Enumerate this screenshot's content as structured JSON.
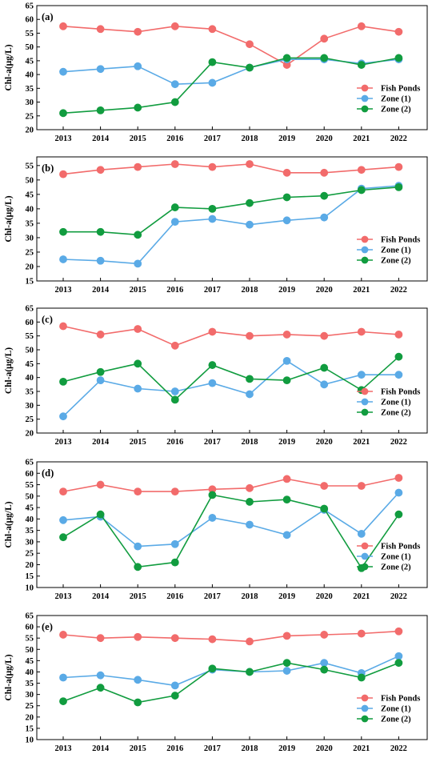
{
  "figure": {
    "x_categories": [
      "2013",
      "2014",
      "2015",
      "2016",
      "2017",
      "2018",
      "2019",
      "2020",
      "2021",
      "2022"
    ],
    "ylabel": "Chl-a(μg/L)",
    "legend": {
      "position": "bottom-right",
      "items": [
        {
          "label": "Fish Ponds",
          "color": "#f26b6b"
        },
        {
          "label": "Zone (1)",
          "color": "#5aaae6"
        },
        {
          "label": "Zone (2)",
          "color": "#119c3f"
        }
      ]
    }
  },
  "chart_data": [
    {
      "panel": "(a)",
      "type": "line",
      "categories": [
        "2013",
        "2014",
        "2015",
        "2016",
        "2017",
        "2018",
        "2019",
        "2020",
        "2021",
        "2022"
      ],
      "ylim": [
        20,
        65
      ],
      "yticks": [
        20,
        25,
        30,
        35,
        40,
        45,
        50,
        55,
        60,
        65
      ],
      "series": [
        {
          "name": "Fish Ponds",
          "values": [
            57.5,
            56.5,
            55.5,
            57.5,
            56.5,
            51,
            43.5,
            53,
            57.5,
            55.5
          ]
        },
        {
          "name": "Zone (1)",
          "values": [
            41,
            42,
            43,
            36.5,
            37,
            42.5,
            45.5,
            45.5,
            44,
            45.5
          ]
        },
        {
          "name": "Zone (2)",
          "values": [
            26,
            27,
            28,
            30,
            44.5,
            42.5,
            46,
            46,
            43.5,
            46
          ]
        }
      ]
    },
    {
      "panel": "(b)",
      "type": "line",
      "categories": [
        "2013",
        "2014",
        "2015",
        "2016",
        "2017",
        "2018",
        "2019",
        "2020",
        "2021",
        "2022"
      ],
      "ylim": [
        15,
        58
      ],
      "yticks": [
        15,
        20,
        25,
        30,
        35,
        40,
        45,
        50,
        55
      ],
      "series": [
        {
          "name": "Fish Ponds",
          "values": [
            52,
            53.5,
            54.5,
            55.5,
            54.5,
            55.5,
            52.5,
            52.5,
            53.5,
            54.5
          ]
        },
        {
          "name": "Zone (1)",
          "values": [
            22.5,
            22,
            21,
            35.5,
            36.5,
            34.5,
            36,
            37,
            47,
            48
          ]
        },
        {
          "name": "Zone (2)",
          "values": [
            32,
            32,
            31,
            40.5,
            40,
            42,
            44,
            44.5,
            46.5,
            47.5
          ]
        }
      ]
    },
    {
      "panel": "(c)",
      "type": "line",
      "categories": [
        "2013",
        "2014",
        "2015",
        "2016",
        "2017",
        "2018",
        "2019",
        "2020",
        "2021",
        "2022"
      ],
      "ylim": [
        20,
        65
      ],
      "yticks": [
        20,
        25,
        30,
        35,
        40,
        45,
        50,
        55,
        60,
        65
      ],
      "series": [
        {
          "name": "Fish Ponds",
          "values": [
            58.5,
            55.5,
            57.5,
            51.5,
            56.5,
            55,
            55.5,
            55,
            56.5,
            55.5
          ]
        },
        {
          "name": "Zone (1)",
          "values": [
            26,
            39,
            36,
            35,
            38,
            34,
            46,
            37.5,
            41,
            41
          ]
        },
        {
          "name": "Zone (2)",
          "values": [
            38.5,
            42,
            45,
            32,
            44.5,
            39.5,
            39,
            43.5,
            35.5,
            47.5
          ]
        }
      ]
    },
    {
      "panel": "(d)",
      "type": "line",
      "categories": [
        "2013",
        "2014",
        "2015",
        "2016",
        "2017",
        "2018",
        "2019",
        "2020",
        "2021",
        "2022"
      ],
      "ylim": [
        10,
        65
      ],
      "yticks": [
        10,
        15,
        20,
        25,
        30,
        35,
        40,
        45,
        50,
        55,
        60,
        65
      ],
      "series": [
        {
          "name": "Fish Ponds",
          "values": [
            52,
            55,
            52,
            52,
            53,
            53.5,
            57.5,
            54.5,
            54.5,
            58
          ]
        },
        {
          "name": "Zone (1)",
          "values": [
            39.5,
            41,
            28,
            29,
            40.5,
            37.5,
            33,
            44,
            33.5,
            51.5
          ]
        },
        {
          "name": "Zone (2)",
          "values": [
            32,
            42,
            19,
            21,
            50.5,
            47.5,
            48.5,
            44.5,
            18.5,
            42
          ]
        }
      ]
    },
    {
      "panel": "(e)",
      "type": "line",
      "categories": [
        "2013",
        "2014",
        "2015",
        "2016",
        "2017",
        "2018",
        "2019",
        "2020",
        "2021",
        "2022"
      ],
      "ylim": [
        10,
        65
      ],
      "yticks": [
        10,
        15,
        20,
        25,
        30,
        35,
        40,
        45,
        50,
        55,
        60,
        65
      ],
      "series": [
        {
          "name": "Fish Ponds",
          "values": [
            56.5,
            55,
            55.5,
            55,
            54.5,
            53.5,
            56,
            56.5,
            57,
            58
          ]
        },
        {
          "name": "Zone (1)",
          "values": [
            37.5,
            38.5,
            36.5,
            34,
            41,
            40,
            40.5,
            44,
            39.5,
            47
          ]
        },
        {
          "name": "Zone (2)",
          "values": [
            27,
            33,
            26.5,
            29.5,
            41.5,
            40,
            44,
            41,
            37.5,
            44
          ]
        }
      ]
    }
  ]
}
